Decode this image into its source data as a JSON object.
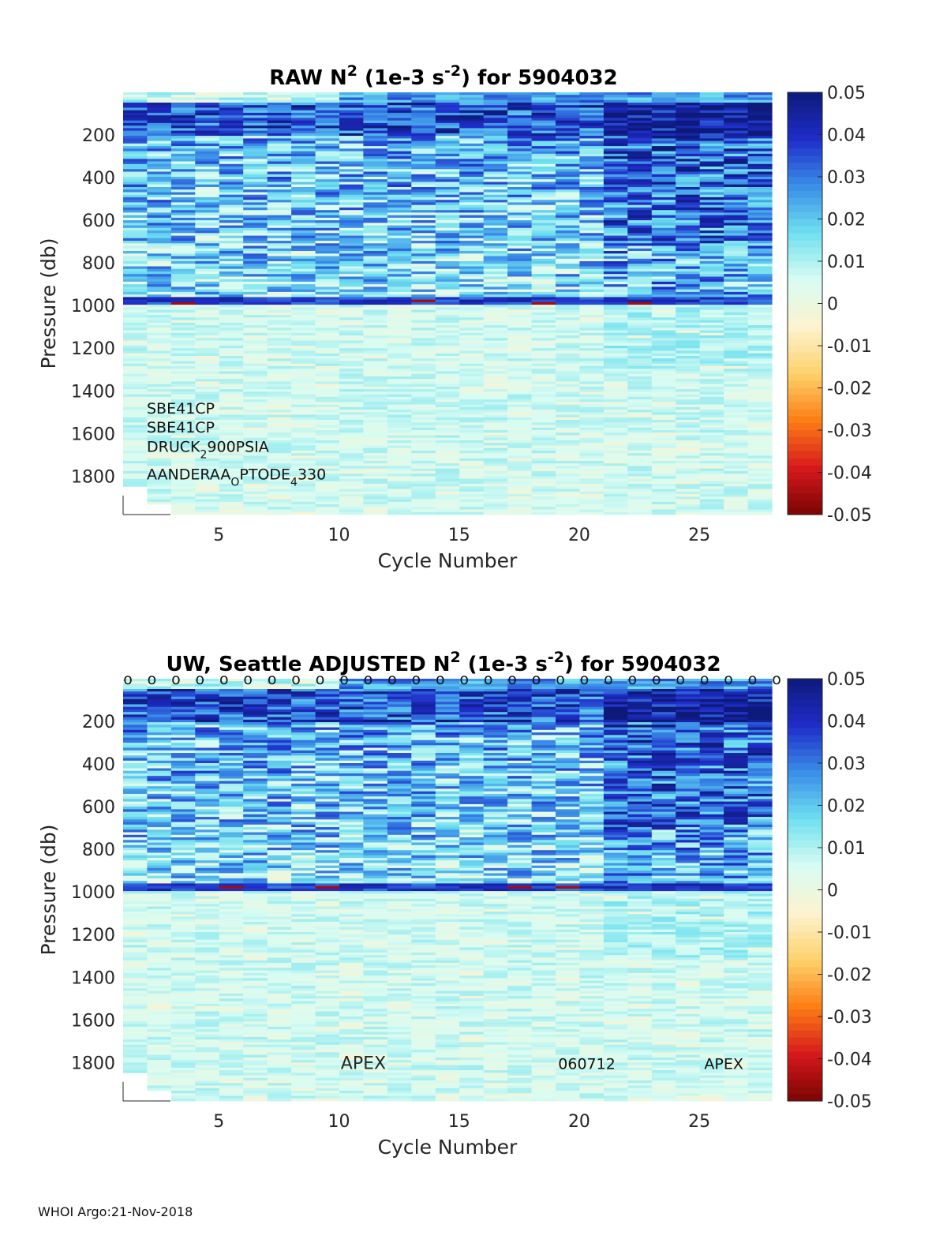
{
  "footer": "WHOI Argo:21-Nov-2018",
  "chart_data": [
    {
      "type": "heatmap",
      "title": {
        "prefix": "RAW N",
        "sup1": "2",
        "mid": " (1e-3 s",
        "sup2": "-2",
        "suffix": ") for 5904032"
      },
      "xlabel": "Cycle Number",
      "ylabel": "Pressure (db)",
      "xlim": [
        1,
        28
      ],
      "ylim": [
        1980,
        0
      ],
      "x_ticks": [
        "5",
        "10",
        "15",
        "20",
        "25"
      ],
      "y_ticks": [
        "200",
        "400",
        "600",
        "800",
        "1000",
        "1200",
        "1400",
        "1600",
        "1800"
      ],
      "colorbar": {
        "range": [
          -0.05,
          0.05
        ],
        "ticks": [
          "0.05",
          "0.04",
          "0.03",
          "0.02",
          "0.01",
          "0",
          "-0.01",
          "-0.02",
          "-0.03",
          "-0.04",
          "-0.05"
        ]
      },
      "colormap": [
        "#7a0403",
        "#d7191c",
        "#fd7e14",
        "#fdd26a",
        "#fdf3d0",
        "#d8fcf2",
        "#6fe0f0",
        "#3a8ee8",
        "#1f2cc8",
        "#0d1a7a"
      ],
      "cycles": 27,
      "field_summary": {
        "0-200 db": "0.02 to 0.05, near-surface patches -0.01 to 0",
        "200-950 db": "0.01 to 0.05, strongest in cycles 21-28",
        "950-1000 db": "band near 0.04 with isolated values near -0.05",
        "1000-1980 db": "0 to 0.01"
      },
      "annotations": [
        {
          "parts": [
            {
              "t": "SBE41CP"
            }
          ]
        },
        {
          "parts": [
            {
              "t": "SBE41CP"
            }
          ]
        },
        {
          "parts": [
            {
              "t": "DRUCK"
            },
            {
              "t": "2",
              "sub": true
            },
            {
              "t": "900PSIA"
            }
          ]
        },
        {
          "parts": [
            {
              "t": "AANDERAA"
            },
            {
              "t": "O",
              "sub": true
            },
            {
              "t": "PTODE"
            },
            {
              "t": "4",
              "sub": true
            },
            {
              "t": "330"
            }
          ]
        }
      ]
    },
    {
      "type": "heatmap",
      "title": {
        "prefix": "UW, Seattle  ADJUSTED N",
        "sup1": "2",
        "mid": " (1e-3 s",
        "sup2": "-2",
        "suffix": ") for 5904032"
      },
      "xlabel": "Cycle Number",
      "ylabel": "Pressure (db)",
      "xlim": [
        1,
        28
      ],
      "ylim": [
        1980,
        0
      ],
      "x_ticks": [
        "5",
        "10",
        "15",
        "20",
        "25"
      ],
      "y_ticks": [
        "200",
        "400",
        "600",
        "800",
        "1000",
        "1200",
        "1400",
        "1600",
        "1800"
      ],
      "colorbar": {
        "range": [
          -0.05,
          0.05
        ],
        "ticks": [
          "0.05",
          "0.04",
          "0.03",
          "0.02",
          "0.01",
          "0",
          "-0.01",
          "-0.02",
          "-0.03",
          "-0.04",
          "-0.05"
        ]
      },
      "colormap": [
        "#7a0403",
        "#d7191c",
        "#fd7e14",
        "#fdd26a",
        "#fdf3d0",
        "#d8fcf2",
        "#6fe0f0",
        "#3a8ee8",
        "#1f2cc8",
        "#0d1a7a"
      ],
      "cycles": 27,
      "marker_row": {
        "marker": "o",
        "count": 28,
        "pressure": 0
      },
      "field_summary": {
        "0-200 db": "0.02 to 0.05, near-surface patches -0.01 to 0",
        "200-950 db": "0.01 to 0.05, strongest in cycles 21-28",
        "950-1000 db": "band near 0.04 with isolated values near -0.05",
        "1000-1980 db": "0 to 0.01"
      },
      "bottom_labels": [
        {
          "text": "APEX",
          "cycle": 11
        },
        {
          "text": "060712",
          "cycle": 20.3
        },
        {
          "text": "APEX",
          "cycle": 26
        }
      ]
    }
  ]
}
